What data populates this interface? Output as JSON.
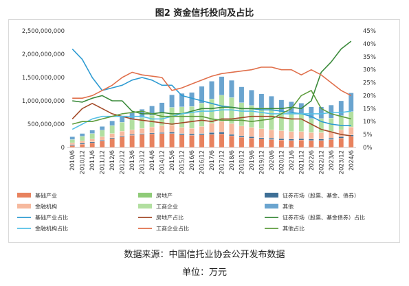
{
  "title": "图2 资金信托投向及占比",
  "source": "数据来源：中国信托业协会公开发布数据",
  "unit": "单位：万元",
  "chart_data": {
    "type": "bar",
    "stacked": true,
    "categories": [
      "2010/6",
      "2010/12",
      "2011/6",
      "2011/12",
      "2012/6",
      "2012/12",
      "2013/6",
      "2013/12",
      "2014/6",
      "2014/12",
      "2015/6",
      "2015/12",
      "2016/6",
      "2016/12",
      "2017/6",
      "2017/12",
      "2018/6",
      "2018/12",
      "2019/6",
      "2019/12",
      "2020/6",
      "2020/12",
      "2021/6",
      "2021/12",
      "2022/6",
      "2022/12",
      "2023/6",
      "2023/12",
      "2024/6"
    ],
    "x_tick_labels": [
      "2010/6",
      "2010/12",
      "2011/6",
      "2011/12",
      "2012/6",
      "2012/12",
      "2013/6",
      "2013/12",
      "2014/6",
      "2014/12",
      "2015/6",
      "2015/12",
      "2016/6",
      "2016/12",
      "2017/6",
      "2017/12",
      "2018/6",
      "2018/12",
      "2019/6",
      "2019/12",
      "2020/6",
      "2020/12",
      "2021/6",
      "2021/12",
      "2022/6",
      "2022/12",
      "2023/6",
      "2023/12",
      "2024/6"
    ],
    "y_left": {
      "min": 0,
      "max": 2500000000,
      "ticks": [
        "0",
        "500,000,000",
        "1,000,000,000",
        "1,500,000,000",
        "2,000,000,000",
        "2,500,000,000"
      ]
    },
    "y_right": {
      "min": 0,
      "max": 45,
      "ticks": [
        "0%",
        "5%",
        "10%",
        "15%",
        "20%",
        "25%",
        "30%",
        "35%",
        "40%",
        "45%"
      ]
    },
    "grid": false,
    "legend_position": "bottom",
    "series": [
      {
        "name": "基础产业",
        "kind": "bar",
        "color": "#e8825e",
        "values": [
          40,
          70,
          100,
          140,
          190,
          230,
          260,
          280,
          290,
          300,
          300,
          270,
          260,
          270,
          280,
          290,
          250,
          220,
          200,
          180,
          170,
          160,
          150,
          160,
          150,
          150,
          170,
          200,
          240
        ]
      },
      {
        "name": "房地产",
        "kind": "bar",
        "color": "#8fcb78",
        "values": [
          0,
          0,
          0,
          0,
          0,
          0,
          0,
          0,
          0,
          0,
          0,
          0,
          0,
          0,
          0,
          0,
          0,
          0,
          0,
          0,
          0,
          0,
          0,
          0,
          0,
          0,
          0,
          0,
          0
        ]
      },
      {
        "name": "证券市场（股票、基金、债券）",
        "kind": "bar",
        "color": "#3e6f96",
        "values": [
          20,
          20,
          20,
          20,
          20,
          20,
          20,
          20,
          20,
          20,
          30,
          30,
          30,
          30,
          40,
          40,
          30,
          30,
          30,
          30,
          30,
          30,
          30,
          30,
          30,
          30,
          30,
          30,
          30
        ]
      },
      {
        "name": "金融机构",
        "kind": "bar",
        "color": "#f6b99e",
        "values": [
          40,
          50,
          60,
          70,
          90,
          100,
          100,
          110,
          130,
          150,
          150,
          130,
          120,
          150,
          200,
          230,
          230,
          210,
          200,
          190,
          180,
          170,
          160,
          150,
          140,
          140,
          140,
          150,
          170
        ]
      },
      {
        "name": "工商企业",
        "kind": "bar",
        "color": "#b2dfa0",
        "values": [
          70,
          100,
          120,
          140,
          170,
          190,
          210,
          230,
          250,
          280,
          380,
          440,
          470,
          500,
          520,
          560,
          560,
          500,
          470,
          450,
          460,
          400,
          400,
          380,
          300,
          300,
          290,
          300,
          330
        ]
      },
      {
        "name": "其他",
        "kind": "bar",
        "color": "#6aa4cf",
        "values": [
          60,
          60,
          70,
          80,
          100,
          140,
          160,
          180,
          200,
          210,
          270,
          290,
          300,
          360,
          380,
          400,
          370,
          340,
          330,
          300,
          260,
          260,
          240,
          230,
          250,
          250,
          280,
          320,
          400
        ]
      },
      {
        "name": "基础产业占比",
        "kind": "line",
        "color": "#2e9bd2",
        "values": [
          38,
          34,
          27,
          22,
          23,
          24,
          26,
          27,
          26,
          24,
          24,
          20,
          19,
          18,
          17,
          16,
          15.5,
          15,
          15,
          14.5,
          14.5,
          14,
          13.5,
          13,
          12,
          10,
          9,
          8.5,
          8.5
        ]
      },
      {
        "name": "房地产占比",
        "kind": "line",
        "color": "#a34a28",
        "values": [
          11,
          15,
          17,
          15,
          13,
          12,
          11,
          10.5,
          10,
          9.5,
          9,
          9.5,
          10,
          10.5,
          10,
          11,
          11,
          11.5,
          12,
          12,
          12,
          11.5,
          11,
          11,
          9,
          7,
          6,
          5,
          4.5
        ]
      },
      {
        "name": "证券市场（股票、基金债券）占比",
        "kind": "line",
        "color": "#3a8a3a",
        "values": [
          18,
          17.5,
          19,
          20,
          18,
          18,
          14,
          13,
          13,
          13.5,
          13,
          13,
          14,
          15,
          15,
          15.5,
          15.5,
          15,
          15,
          15,
          15,
          15,
          15.5,
          15,
          18,
          29,
          33,
          38,
          41
        ]
      },
      {
        "name": "金融机构占比",
        "kind": "line",
        "color": "#55c0e6",
        "values": [
          7,
          9,
          11,
          12,
          12,
          12,
          12,
          12,
          11,
          11,
          12,
          13,
          13.5,
          14,
          14,
          14.5,
          14.5,
          14,
          14,
          13.5,
          13,
          13,
          13,
          13,
          13,
          13,
          13.5,
          13.5,
          14
        ]
      },
      {
        "name": "工商企业占比",
        "kind": "line",
        "color": "#e0704c",
        "values": [
          19,
          19,
          20,
          22,
          24,
          27,
          29,
          28,
          27.5,
          27,
          22,
          23,
          24.5,
          26,
          27.5,
          28.5,
          29,
          29.5,
          30,
          31,
          31,
          30,
          30,
          28,
          30,
          28,
          25,
          22,
          20
        ]
      },
      {
        "name": "其他占比",
        "kind": "line",
        "color": "#5f9d3e",
        "values": [
          9,
          10,
          10,
          11,
          12,
          13,
          13.5,
          14,
          13,
          12,
          12,
          12,
          12,
          12,
          11,
          10.5,
          10.5,
          10.5,
          10,
          10.5,
          11,
          13,
          15,
          20,
          22,
          15,
          13,
          12,
          11
        ]
      }
    ]
  }
}
